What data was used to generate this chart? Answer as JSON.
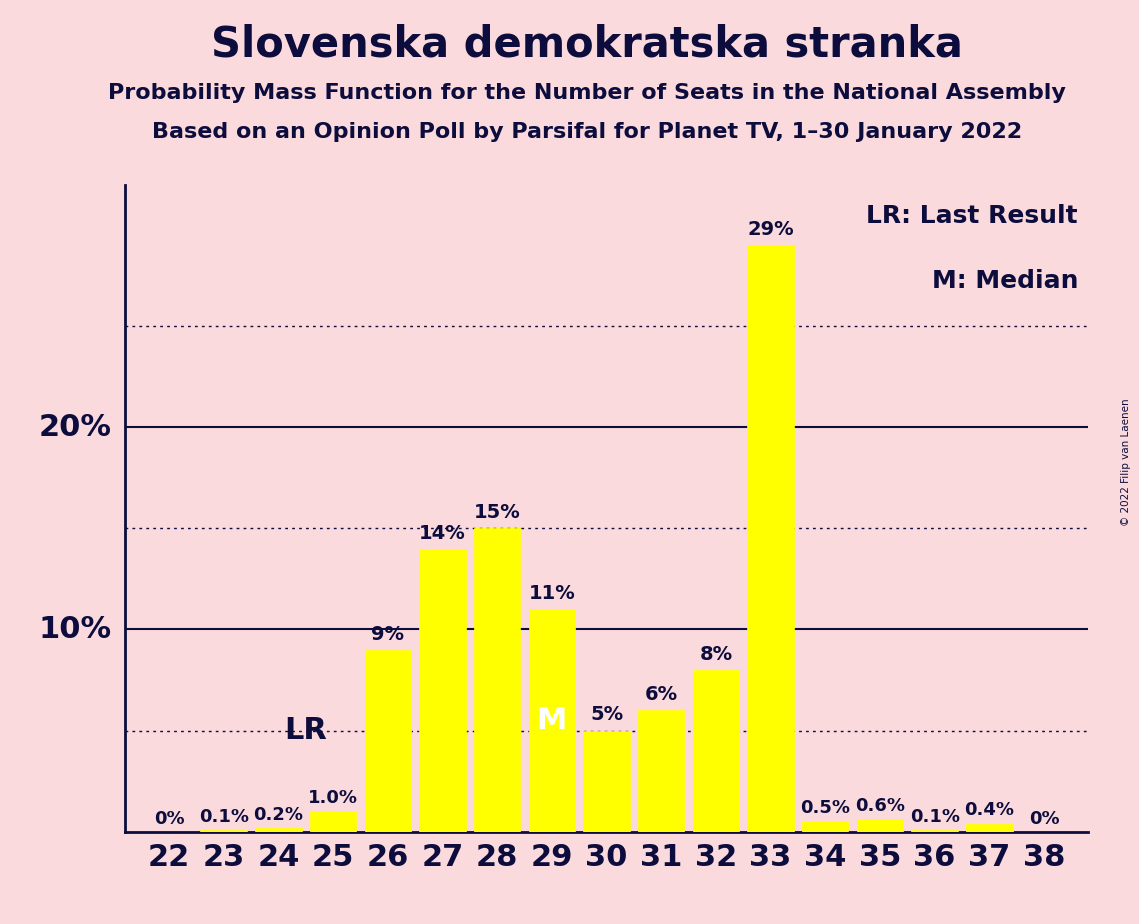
{
  "title": "Slovenska demokratska stranka",
  "subtitle1": "Probability Mass Function for the Number of Seats in the National Assembly",
  "subtitle2": "Based on an Opinion Poll by Parsifal for Planet TV, 1–30 January 2022",
  "copyright": "© 2022 Filip van Laenen",
  "categories": [
    22,
    23,
    24,
    25,
    26,
    27,
    28,
    29,
    30,
    31,
    32,
    33,
    34,
    35,
    36,
    37,
    38
  ],
  "values": [
    0.0,
    0.1,
    0.2,
    1.0,
    9.0,
    14.0,
    15.0,
    11.0,
    5.0,
    6.0,
    8.0,
    29.0,
    0.5,
    0.6,
    0.1,
    0.4,
    0.0
  ],
  "labels": [
    "0%",
    "0.1%",
    "0.2%",
    "1.0%",
    "9%",
    "14%",
    "15%",
    "11%",
    "5%",
    "6%",
    "8%",
    "29%",
    "0.5%",
    "0.6%",
    "0.1%",
    "0.4%",
    "0%"
  ],
  "bar_color": "#FFFF00",
  "bar_edge_color": "#FFFF00",
  "background_color": "#FADADD",
  "text_color": "#0D0D3D",
  "ylim": [
    0,
    32
  ],
  "solid_yticks": [
    10,
    20
  ],
  "dotted_yticks": [
    5,
    15,
    25
  ],
  "lr_seat": 25,
  "median_seat": 29,
  "legend_lr": "LR: Last Result",
  "legend_m": "M: Median",
  "lr_label": "LR",
  "m_label": "M",
  "lr_label_color": "#0D0D3D",
  "m_label_color": "#FFFFFF",
  "ylabel_10": "10%",
  "ylabel_20": "20%"
}
